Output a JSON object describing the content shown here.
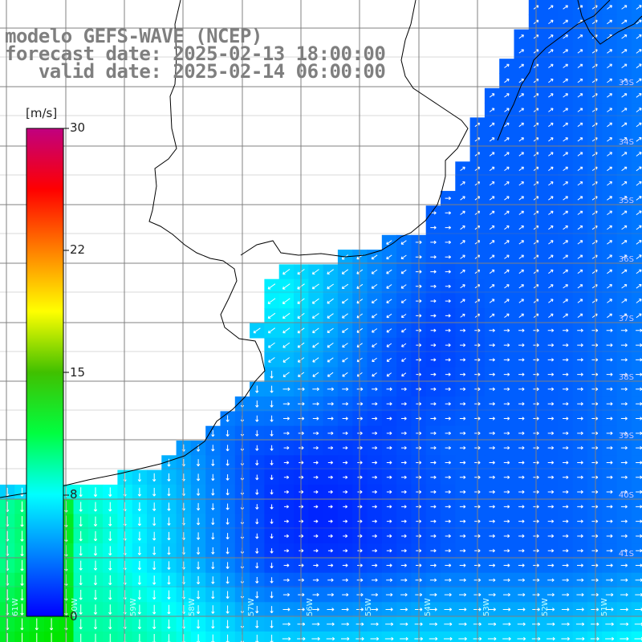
{
  "titles": {
    "model": "modelo GEFS-WAVE (NCEP)",
    "forecast": "forecast date: 2025-02-13 18:00:00",
    "valid": "   valid date: 2025-02-14 06:00:00"
  },
  "colorbar": {
    "unit": "[m/s]",
    "ticks": [
      "30",
      "22",
      "15",
      "8",
      "0"
    ],
    "tick_values": [
      30,
      22,
      15,
      8,
      0
    ],
    "range": [
      0,
      30
    ],
    "colors": [
      "#0000ff",
      "#0080ff",
      "#00ffff",
      "#00ff40",
      "#40c000",
      "#ffff00",
      "#ff8000",
      "#ff0000",
      "#c00080"
    ]
  },
  "lat_labels": [
    "33S",
    "34S",
    "35S",
    "36S",
    "37S",
    "38S",
    "39S",
    "40S",
    "41S"
  ],
  "lon_labels": [
    "61W",
    "60W",
    "59W",
    "58W",
    "57W",
    "56W",
    "55W",
    "54W",
    "53W",
    "52W",
    "51W"
  ],
  "colors": {
    "land": "#ffffff",
    "grid": "#808080",
    "coast": "#000000",
    "arrow": "#ffffff",
    "title": "#7f7f7f"
  }
}
